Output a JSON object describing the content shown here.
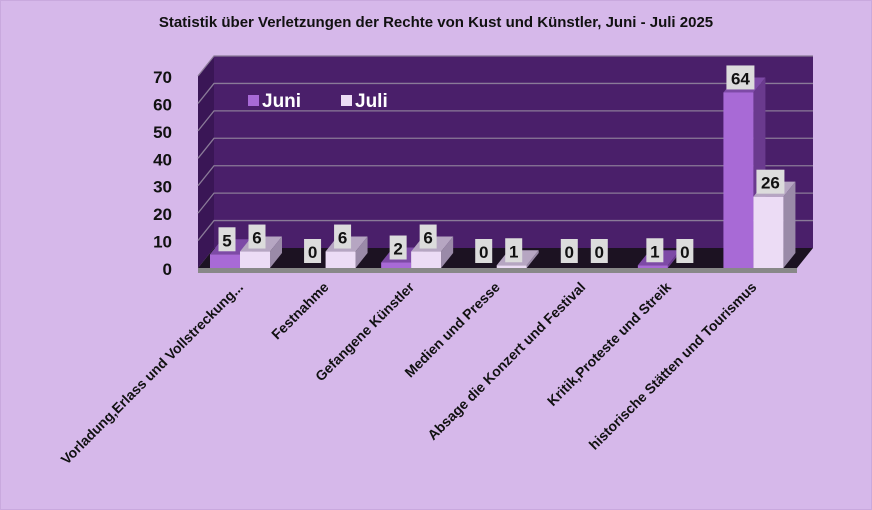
{
  "chart_data": {
    "type": "bar",
    "title": "Statistik über Verletzungen der Rechte von Kust und Künstler, Juni - Juli 2025",
    "categories": [
      "Vorladung,Erlass und  Vollstreckung...",
      "Festnahme",
      "Gefangene Künstler",
      "Medien und Presse",
      "Absage die Konzert und Festival",
      "Kritik,Proteste und  Streik",
      "historische Stätten und Tourismus"
    ],
    "series": [
      {
        "name": "Juni",
        "color": "#a86ad6",
        "values": [
          5,
          0,
          2,
          0,
          0,
          1,
          64
        ]
      },
      {
        "name": "Juli",
        "color": "#ecdcf5",
        "values": [
          6,
          6,
          6,
          1,
          0,
          0,
          26
        ]
      }
    ],
    "yticks": [
      0,
      10,
      20,
      30,
      40,
      50,
      60,
      70
    ],
    "ylim": [
      0,
      70
    ],
    "grid": true,
    "legend": "top-left",
    "wall_color": "#4a1f6a"
  }
}
